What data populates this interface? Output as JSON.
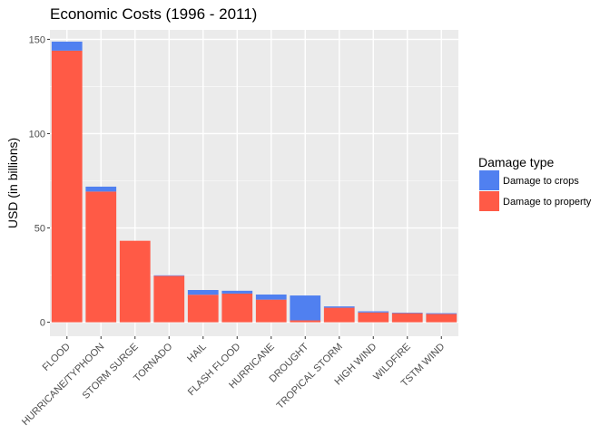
{
  "chart_data": {
    "type": "bar",
    "stacked": true,
    "title": "Economic Costs (1996 - 2011)",
    "xlabel": "",
    "ylabel": "USD (in billions)",
    "ylim": [
      -7.4,
      155
    ],
    "yticks": [
      0,
      50,
      100,
      150
    ],
    "grid": true,
    "legend_position": "right",
    "legend_title": "Damage type",
    "categories": [
      "FLOOD",
      "HURRICANE/TYPHOON",
      "STORM SURGE",
      "TORNADO",
      "HAIL",
      "FLASH FLOOD",
      "HURRICANE",
      "DROUGHT",
      "TROPICAL STORM",
      "HIGH WIND",
      "WILDFIRE",
      "TSTM WIND"
    ],
    "series": [
      {
        "name": "Damage to crops",
        "color": "#5080F0",
        "values": [
          4.8,
          2.6,
          0.0,
          0.3,
          2.5,
          1.5,
          2.7,
          13.2,
          0.7,
          0.6,
          0.3,
          0.4
        ]
      },
      {
        "name": "Damage to property",
        "color": "#FF5A46",
        "values": [
          144.0,
          69.3,
          43.2,
          24.6,
          14.6,
          15.2,
          12.0,
          1.0,
          7.7,
          5.2,
          4.8,
          4.4
        ]
      }
    ],
    "stack_order": [
      "Damage to property",
      "Damage to crops"
    ]
  }
}
